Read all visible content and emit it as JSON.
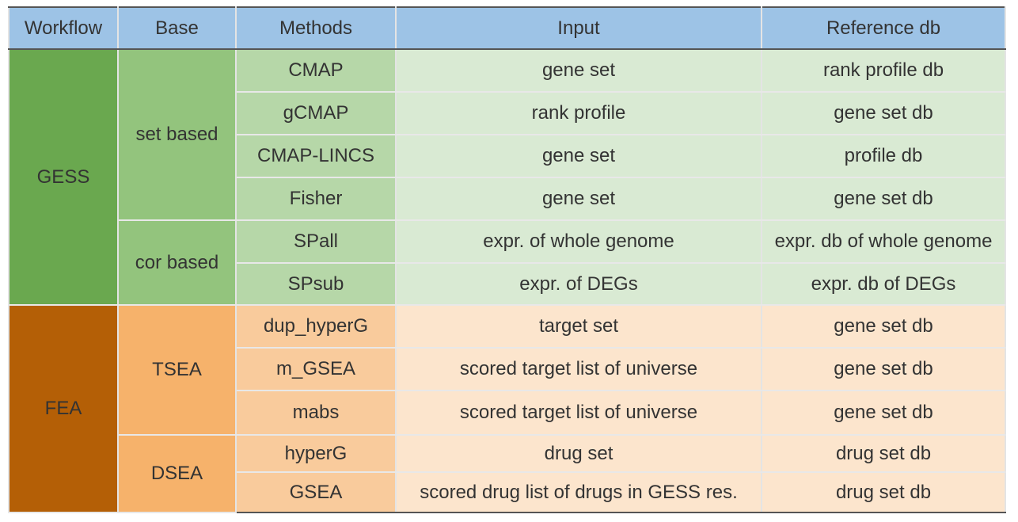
{
  "table": {
    "headers": [
      "Workflow",
      "Base",
      "Methods",
      "Input",
      "Reference db"
    ],
    "workflows": [
      {
        "name": "GESS",
        "bases": [
          {
            "name": "set based",
            "rows": [
              {
                "method": "CMAP",
                "input": "gene set",
                "reference": "rank profile db"
              },
              {
                "method": "gCMAP",
                "input": "rank profile",
                "reference": "gene set db"
              },
              {
                "method": "CMAP-LINCS",
                "input": "gene set",
                "reference": "profile db"
              },
              {
                "method": "Fisher",
                "input": "gene set",
                "reference": "gene set db"
              }
            ]
          },
          {
            "name": "cor based",
            "rows": [
              {
                "method": "SPall",
                "input": "expr. of whole genome",
                "reference": "expr. db of whole genome"
              },
              {
                "method": "SPsub",
                "input": "expr. of DEGs",
                "reference": "expr. db of DEGs"
              }
            ]
          }
        ]
      },
      {
        "name": "FEA",
        "bases": [
          {
            "name": "TSEA",
            "rows": [
              {
                "method": "dup_hyperG",
                "input": "target set",
                "reference": "gene set db"
              },
              {
                "method": "m_GSEA",
                "input": "scored target list of universe",
                "reference": "gene set db"
              },
              {
                "method": "mabs",
                "input": "scored target list of universe",
                "reference": "gene set db"
              }
            ]
          },
          {
            "name": "DSEA",
            "rows": [
              {
                "method": "hyperG",
                "input": "drug set",
                "reference": "drug set db"
              },
              {
                "method": "GSEA",
                "input": "scored drug list of drugs in GESS res.",
                "reference": "drug set db"
              }
            ]
          }
        ]
      }
    ],
    "colors": {
      "header": "#9dc3e6",
      "gess": {
        "workflow": "#6aa84f",
        "base": "#93c47d",
        "method": "#b6d7a8",
        "cell": "#d9ead3"
      },
      "fea": {
        "workflow": "#b45f06",
        "base": "#f6b26b",
        "method": "#f9cb9c",
        "cell": "#fce5cd"
      }
    }
  }
}
